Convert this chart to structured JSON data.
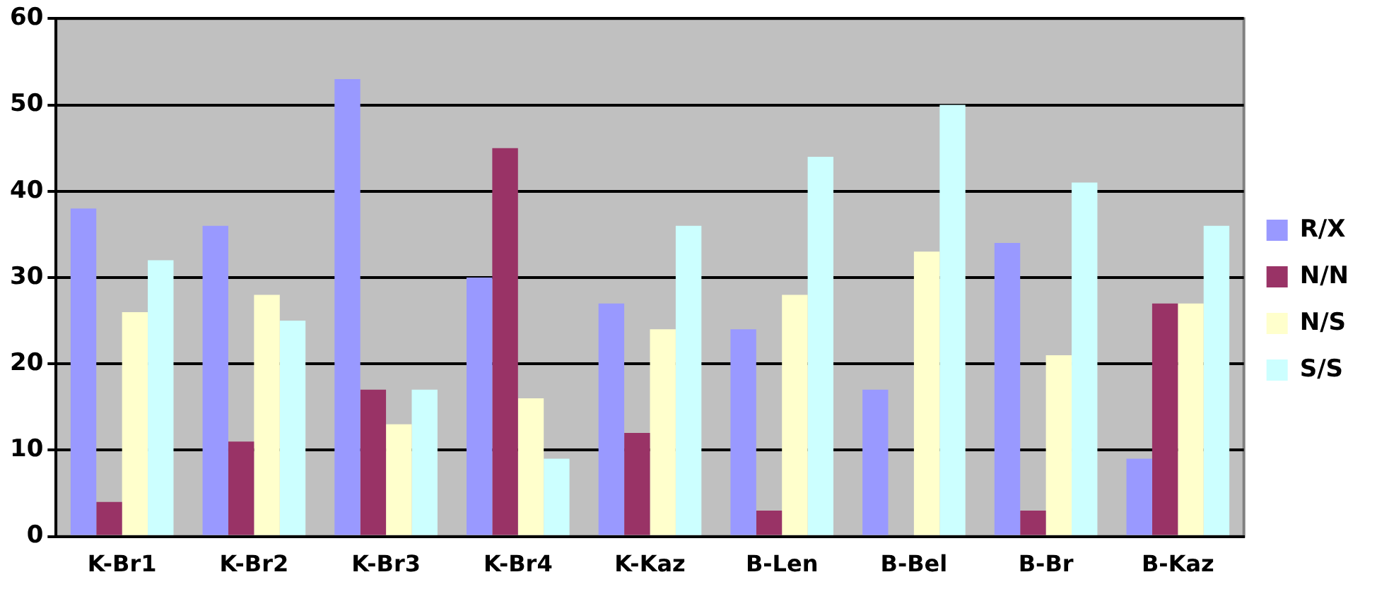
{
  "chart_data": {
    "type": "bar",
    "categories": [
      "K-Br1",
      "K-Br2",
      "K-Br3",
      "K-Br4",
      "K-Kaz",
      "B-Len",
      "B-Bel",
      "B-Br",
      "B-Kaz"
    ],
    "series": [
      {
        "name": "R/X",
        "color": "#9999ff",
        "values": [
          38,
          36,
          53,
          30,
          27,
          24,
          17,
          34,
          9
        ]
      },
      {
        "name": "N/N",
        "color": "#993366",
        "values": [
          4,
          11,
          17,
          45,
          12,
          3,
          0,
          3,
          27
        ]
      },
      {
        "name": "N/S",
        "color": "#ffffcc",
        "values": [
          26,
          28,
          13,
          16,
          24,
          28,
          33,
          21,
          27
        ]
      },
      {
        "name": "S/S",
        "color": "#ccffff",
        "values": [
          32,
          25,
          17,
          9,
          36,
          44,
          50,
          41,
          36
        ]
      }
    ],
    "ylim": [
      0,
      60
    ],
    "yticks": [
      0,
      10,
      20,
      30,
      40,
      50,
      60
    ],
    "grid": "y",
    "legend": "right"
  }
}
